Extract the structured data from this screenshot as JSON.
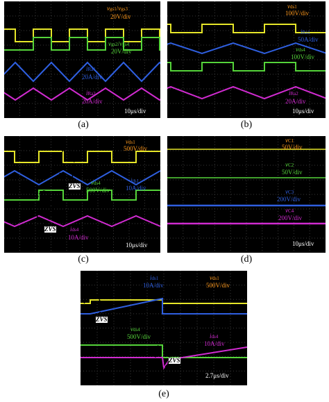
{
  "colors": {
    "yellow": "#e6e629",
    "green": "#55d43a",
    "blue": "#2f5fe0",
    "magenta": "#d02bd0",
    "orange": "#ff9a1e",
    "grid": "#3a3a3a",
    "bg": "#000000"
  },
  "panels": [
    {
      "id": "a",
      "caption": "(a)",
      "time_scale": "10μs/div",
      "labels": [
        {
          "main": "v",
          "sub": "gs1",
          "main2": "/v",
          "sub2": "gs3",
          "color": "orange"
        },
        {
          "main": "20V/div",
          "sub": "",
          "color": "orange"
        },
        {
          "main": "v",
          "sub": "gs2",
          "main2": "/v",
          "sub2": "gs4",
          "color": "green"
        },
        {
          "main": "20V/div",
          "sub": "",
          "color": "green"
        },
        {
          "main": "i",
          "sub": "Ra1",
          "color": "blue"
        },
        {
          "main": "20A/div",
          "sub": "",
          "color": "blue"
        },
        {
          "main": "i",
          "sub": "Ra2",
          "color": "magenta"
        },
        {
          "main": "20A/div",
          "sub": "",
          "color": "magenta"
        }
      ]
    },
    {
      "id": "b",
      "caption": "(b)",
      "time_scale": "10μs/div",
      "labels": [
        {
          "main": "v",
          "sub": "ds1",
          "color": "orange"
        },
        {
          "main": "100V/div",
          "sub": "",
          "color": "orange"
        },
        {
          "main": "i",
          "sub": "Ra1",
          "color": "blue"
        },
        {
          "main": "50A/div",
          "sub": "",
          "color": "blue"
        },
        {
          "main": "v",
          "sub": "ds4",
          "color": "green"
        },
        {
          "main": "100V/div",
          "sub": "",
          "color": "green"
        },
        {
          "main": "i",
          "sub": "Ra2",
          "color": "magenta"
        },
        {
          "main": "20A/div",
          "sub": "",
          "color": "magenta"
        }
      ]
    },
    {
      "id": "c",
      "caption": "(c)",
      "time_scale": "10μs/div",
      "labels": [
        {
          "main": "v",
          "sub": "ds1",
          "color": "orange"
        },
        {
          "main": "500V/div",
          "sub": "",
          "color": "orange"
        },
        {
          "main": "ZVS",
          "sub": "",
          "color": "black"
        },
        {
          "main": "v",
          "sub": "ds4",
          "color": "green"
        },
        {
          "main": "500V/div",
          "sub": "",
          "color": "green"
        },
        {
          "main": "i",
          "sub": "ds1",
          "color": "blue"
        },
        {
          "main": "10A/div",
          "sub": "",
          "color": "blue"
        },
        {
          "main": "ZVS",
          "sub": "",
          "color": "black"
        },
        {
          "main": "i",
          "sub": "ds4",
          "color": "magenta"
        },
        {
          "main": "10A/div",
          "sub": "",
          "color": "magenta"
        }
      ]
    },
    {
      "id": "d",
      "caption": "(d)",
      "time_scale": "10μs/div",
      "labels": [
        {
          "main": "v",
          "sub": "C1",
          "color": "orange"
        },
        {
          "main": "50V/div",
          "sub": "",
          "color": "orange"
        },
        {
          "main": "v",
          "sub": "C2",
          "color": "green"
        },
        {
          "main": "50V/div",
          "sub": "",
          "color": "green"
        },
        {
          "main": "v",
          "sub": "C3",
          "color": "blue"
        },
        {
          "main": "200V/div",
          "sub": "",
          "color": "blue"
        },
        {
          "main": "v",
          "sub": "C4",
          "color": "magenta"
        },
        {
          "main": "200V/div",
          "sub": "",
          "color": "magenta"
        }
      ]
    },
    {
      "id": "e",
      "caption": "(e)",
      "time_scale": "2.7μs/div",
      "labels": [
        {
          "main": "i",
          "sub": "ds1",
          "color": "blue"
        },
        {
          "main": "10A/div",
          "sub": "",
          "color": "blue"
        },
        {
          "main": "v",
          "sub": "ds1",
          "color": "orange"
        },
        {
          "main": "500V/div",
          "sub": "",
          "color": "orange"
        },
        {
          "main": "ZVS",
          "sub": "",
          "color": "black"
        },
        {
          "main": "v",
          "sub": "ds4",
          "color": "green"
        },
        {
          "main": "500V/div",
          "sub": "",
          "color": "green"
        },
        {
          "main": "i",
          "sub": "ds4",
          "color": "magenta"
        },
        {
          "main": "10A/div",
          "sub": "",
          "color": "magenta"
        },
        {
          "main": "ZVS",
          "sub": "",
          "color": "black"
        }
      ]
    }
  ],
  "chart_data": [
    {
      "type": "line",
      "panel": "a",
      "x_unit": "μs",
      "x_div": 10,
      "series": [
        {
          "name": "v_gs1/v_gs3",
          "values": "square wave, 20V/div"
        },
        {
          "name": "v_gs2/v_gs4",
          "values": "square wave complementary, 20V/div"
        },
        {
          "name": "i_Ra1",
          "values": "sawtooth, 20A/div"
        },
        {
          "name": "i_Ra2",
          "values": "sawtooth, 20A/div"
        }
      ]
    },
    {
      "type": "line",
      "panel": "b",
      "x_unit": "μs",
      "x_div": 10,
      "series": [
        {
          "name": "v_ds1",
          "values": "square, 100V/div"
        },
        {
          "name": "i_Ra1",
          "values": "50A/div"
        },
        {
          "name": "v_ds4",
          "values": "square, 100V/div"
        },
        {
          "name": "i_Ra2",
          "values": "20A/div"
        }
      ]
    },
    {
      "type": "line",
      "panel": "c",
      "x_unit": "μs",
      "x_div": 10,
      "series": [
        {
          "name": "v_ds1",
          "values": "500V/div"
        },
        {
          "name": "v_ds4",
          "values": "500V/div"
        },
        {
          "name": "i_ds1",
          "values": "10A/div"
        },
        {
          "name": "i_ds4",
          "values": "10A/div"
        }
      ]
    },
    {
      "type": "line",
      "panel": "d",
      "x_unit": "μs",
      "x_div": 10,
      "series": [
        {
          "name": "v_C1",
          "values": "flat, 50V/div"
        },
        {
          "name": "v_C2",
          "values": "flat, 50V/div"
        },
        {
          "name": "v_C3",
          "values": "flat, 200V/div"
        },
        {
          "name": "v_C4",
          "values": "flat, 200V/div"
        }
      ]
    },
    {
      "type": "line",
      "panel": "e",
      "x_unit": "μs",
      "x_div": 2.7,
      "series": [
        {
          "name": "i_ds1",
          "values": "10A/div"
        },
        {
          "name": "v_ds1",
          "values": "500V/div"
        },
        {
          "name": "v_ds4",
          "values": "500V/div"
        },
        {
          "name": "i_ds4",
          "values": "10A/div"
        }
      ]
    }
  ]
}
